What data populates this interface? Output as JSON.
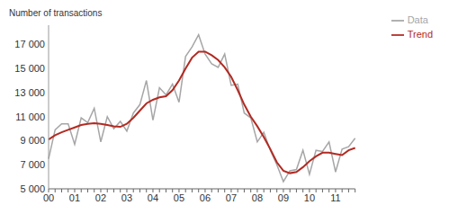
{
  "chart_data": {
    "type": "line",
    "ylabel": "Number of transactions",
    "categories": [
      "00",
      null,
      null,
      null,
      "01",
      null,
      null,
      null,
      "02",
      null,
      null,
      null,
      "03",
      null,
      null,
      null,
      "04",
      null,
      null,
      null,
      "05",
      null,
      null,
      null,
      "06",
      null,
      null,
      null,
      "07",
      null,
      null,
      null,
      "08",
      null,
      null,
      null,
      "09",
      null,
      null,
      null,
      "10",
      null,
      null,
      null,
      "11",
      null,
      null,
      null
    ],
    "series": [
      {
        "name": "Data",
        "color": "#a6a6a6",
        "values": [
          7500,
          9900,
          10400,
          10400,
          8700,
          10900,
          10500,
          11700,
          8900,
          11000,
          10000,
          10600,
          9800,
          11300,
          12000,
          14000,
          10700,
          13400,
          12800,
          13700,
          12200,
          16000,
          16800,
          17800,
          16200,
          15400,
          15100,
          16200,
          13600,
          13700,
          11300,
          10900,
          8900,
          9700,
          8200,
          7000,
          5600,
          6500,
          6600,
          8200,
          6200,
          8200,
          8100,
          8900,
          6400,
          8300,
          8500,
          9200
        ]
      },
      {
        "name": "Trend",
        "color": "#b22a22",
        "values": [
          9100,
          9450,
          9700,
          9900,
          10100,
          10300,
          10400,
          10450,
          10400,
          10300,
          10200,
          10150,
          10400,
          10900,
          11500,
          12100,
          12400,
          12600,
          12700,
          13200,
          14000,
          15000,
          15900,
          16400,
          16400,
          16100,
          15700,
          15100,
          14300,
          13200,
          12000,
          11000,
          10200,
          9300,
          8300,
          7200,
          6500,
          6300,
          6400,
          6800,
          7300,
          7700,
          8000,
          8000,
          7900,
          7800,
          8200,
          8400
        ]
      }
    ],
    "ylim": [
      5000,
      18600
    ],
    "yticks": [
      {
        "value": 5000,
        "label": "5 000"
      },
      {
        "value": 7000,
        "label": "7 000"
      },
      {
        "value": 9000,
        "label": "9 000"
      },
      {
        "value": 11000,
        "label": "11 000"
      },
      {
        "value": 13000,
        "label": "13 000"
      },
      {
        "value": 15000,
        "label": "15 000"
      },
      {
        "value": 17000,
        "label": "17 000"
      }
    ],
    "grid": false,
    "legend": "upper right"
  }
}
